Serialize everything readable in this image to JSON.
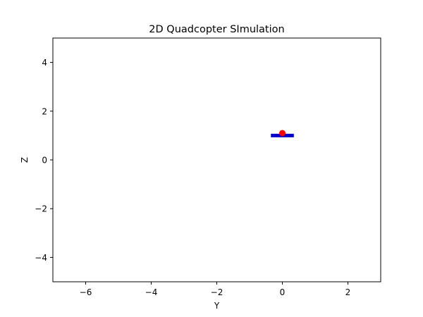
{
  "chart_data": {
    "type": "scatter",
    "title": "2D Quadcopter SImulation",
    "xlabel": "Y",
    "ylabel": "Z",
    "xlim": [
      -7,
      3
    ],
    "ylim": [
      -5,
      5
    ],
    "x_ticks": [
      {
        "value": -6,
        "label": "−6"
      },
      {
        "value": -4,
        "label": "−4"
      },
      {
        "value": -2,
        "label": "−2"
      },
      {
        "value": 0,
        "label": "0"
      },
      {
        "value": 2,
        "label": "2"
      }
    ],
    "y_ticks": [
      {
        "value": 4,
        "label": "4"
      },
      {
        "value": 2,
        "label": "2"
      },
      {
        "value": 0,
        "label": "0"
      },
      {
        "value": -2,
        "label": "−2"
      },
      {
        "value": -4,
        "label": "−4"
      }
    ],
    "grid": false,
    "quadcopter": {
      "body": {
        "y_start": -0.35,
        "y_end": 0.35,
        "z": 1.0,
        "color": "#0000cc"
      },
      "center": {
        "y": 0.0,
        "z": 1.1,
        "color": "#ff0000"
      }
    }
  }
}
